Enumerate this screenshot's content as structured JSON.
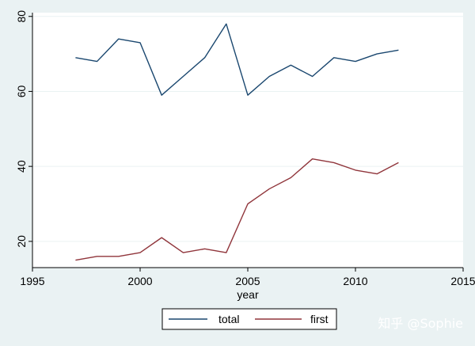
{
  "chart_data": {
    "type": "line",
    "xlabel": "year",
    "ylabel": "",
    "xlim": [
      1995,
      2015
    ],
    "ylim": [
      13,
      81
    ],
    "x_ticks": [
      1995,
      2000,
      2005,
      2010,
      2015
    ],
    "y_ticks": [
      20,
      40,
      60,
      80
    ],
    "grid": true,
    "legend_position": "bottom",
    "x": [
      1997,
      1998,
      1999,
      2000,
      2001,
      2002,
      2003,
      2004,
      2005,
      2006,
      2007,
      2008,
      2009,
      2010,
      2011,
      2012
    ],
    "series": [
      {
        "name": "total",
        "color": "#1a476f",
        "values": [
          69,
          68,
          74,
          73,
          59,
          64,
          69,
          78,
          59,
          64,
          67,
          64,
          69,
          68,
          70,
          71
        ]
      },
      {
        "name": "first",
        "color": "#90353b",
        "values": [
          15,
          16,
          16,
          17,
          21,
          17,
          18,
          17,
          30,
          34,
          37,
          42,
          41,
          39,
          38,
          41
        ]
      }
    ]
  },
  "watermark": "知乎 @Sophie",
  "colors": {
    "background": "#eaf2f3",
    "plot_background": "#ffffff",
    "grid": "#eaf2f3"
  }
}
